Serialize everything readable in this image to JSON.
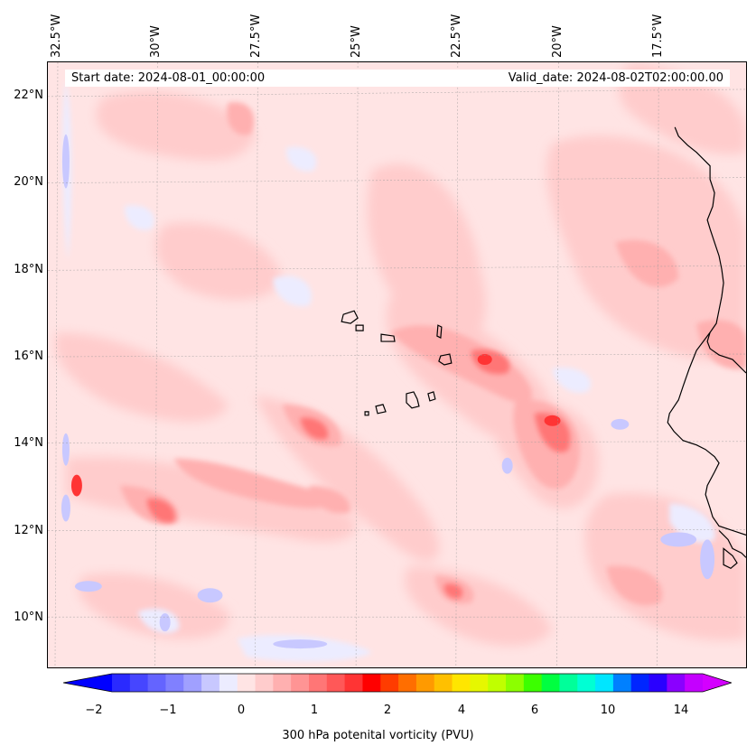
{
  "header": {
    "start_date": "Start date: 2024-08-01_00:00:00",
    "valid_date": "Valid_date: 2024-08-02T02:00:00.00"
  },
  "axes": {
    "longitude_labels": [
      "32.5°W",
      "30°W",
      "27.5°W",
      "25°W",
      "22.5°W",
      "20°W",
      "17.5°W"
    ],
    "latitude_labels": [
      "22°N",
      "20°N",
      "18°N",
      "16°N",
      "14°N",
      "12°N",
      "10°N"
    ]
  },
  "colorbar": {
    "label": "300 hPa potenital vorticity (PVU)",
    "tick_labels": [
      "−2",
      "−1",
      "0",
      "1",
      "2",
      "4",
      "6",
      "10",
      "14"
    ],
    "colors": [
      "#0000ff",
      "#2a2aff",
      "#4646ff",
      "#6464ff",
      "#8080ff",
      "#a0a0ff",
      "#c8c8ff",
      "#ececff",
      "#ffe4e4",
      "#ffcccc",
      "#ffb0b0",
      "#ff9494",
      "#ff7676",
      "#ff5858",
      "#ff3434",
      "#ff0000",
      "#ff3c00",
      "#ff6e00",
      "#ff9a00",
      "#ffc000",
      "#ffe600",
      "#e6f700",
      "#c0ff00",
      "#8cff00",
      "#3cff00",
      "#00ff40",
      "#00ff9a",
      "#00ffd4",
      "#00e6ff",
      "#0080ff",
      "#0026ff",
      "#2a00ff",
      "#8a00ff",
      "#c400ff",
      "#d400ff"
    ]
  },
  "map": {
    "background_color": "#ffe4e4",
    "coastline_color": "#000000"
  }
}
